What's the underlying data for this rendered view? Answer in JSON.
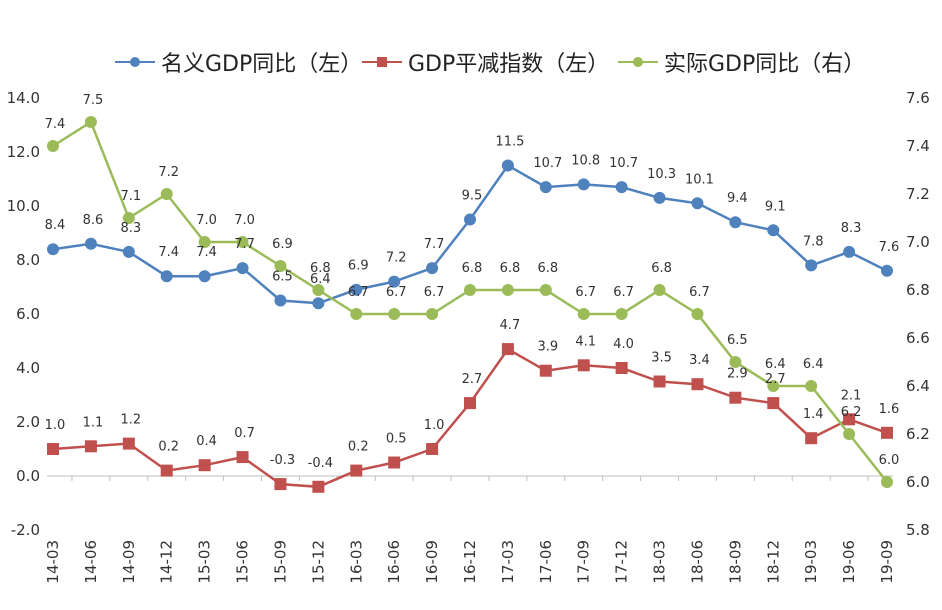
{
  "chart_data": {
    "type": "line",
    "categories": [
      "14-03",
      "14-06",
      "14-09",
      "14-12",
      "15-03",
      "15-06",
      "15-09",
      "15-12",
      "16-03",
      "16-06",
      "16-09",
      "16-12",
      "17-03",
      "17-06",
      "17-09",
      "17-12",
      "18-03",
      "18-06",
      "18-09",
      "18-12",
      "19-03",
      "19-06",
      "19-09"
    ],
    "left_axis": {
      "ylim": [
        -2.0,
        14.0
      ],
      "ticks": [
        "14.0",
        "12.0",
        "10.0",
        "8.0",
        "6.0",
        "4.0",
        "2.0",
        "0.0",
        "-2.0"
      ],
      "tick_values": [
        14,
        12,
        10,
        8,
        6,
        4,
        2,
        0,
        -2
      ]
    },
    "right_axis": {
      "ylim": [
        5.8,
        7.6
      ],
      "ticks": [
        "7.6",
        "7.4",
        "7.2",
        "7.0",
        "6.8",
        "6.6",
        "6.4",
        "6.2",
        "6.0",
        "5.8"
      ],
      "tick_values": [
        7.6,
        7.4,
        7.2,
        7.0,
        6.8,
        6.6,
        6.4,
        6.2,
        6.0,
        5.8
      ]
    },
    "series": [
      {
        "name": "名义GDP同比（左）",
        "axis": "left",
        "color": "#4f81bd",
        "marker": "circle",
        "values": [
          8.4,
          8.6,
          8.3,
          7.4,
          7.4,
          7.7,
          6.5,
          6.4,
          6.9,
          7.2,
          7.7,
          9.5,
          11.5,
          10.7,
          10.8,
          10.7,
          10.3,
          10.1,
          9.4,
          9.1,
          7.8,
          8.3,
          7.6
        ],
        "labels": [
          "8.4",
          "8.6",
          "8.3",
          "7.4",
          "7.4",
          "7.7",
          "6.5",
          "6.4",
          "6.9",
          "7.2",
          "7.7",
          "9.5",
          "11.5",
          "10.7",
          "10.8",
          "10.7",
          "10.3",
          "10.1",
          "9.4",
          "9.1",
          "7.8",
          "8.3",
          "7.6"
        ]
      },
      {
        "name": "GDP平减指数（左）",
        "axis": "left",
        "color": "#c0504d",
        "marker": "square",
        "values": [
          1.0,
          1.1,
          1.2,
          0.2,
          0.4,
          0.7,
          -0.3,
          -0.4,
          0.2,
          0.5,
          1.0,
          2.7,
          4.7,
          3.9,
          4.1,
          4.0,
          3.5,
          3.4,
          2.9,
          2.7,
          1.4,
          2.1,
          1.6
        ],
        "labels": [
          "1.0",
          "1.1",
          "1.2",
          "0.2",
          "0.4",
          "0.7",
          "-0.3",
          "-0.4",
          "0.2",
          "0.5",
          "1.0",
          "2.7",
          "4.7",
          "3.9",
          "4.1",
          "4.0",
          "3.5",
          "3.4",
          "2.9",
          "2.7",
          "1.4",
          "2.1",
          "1.6"
        ]
      },
      {
        "name": "实际GDP同比（右）",
        "axis": "right",
        "color": "#9bbb59",
        "marker": "circle",
        "values": [
          7.4,
          7.5,
          7.1,
          7.2,
          7.0,
          7.0,
          6.9,
          6.8,
          6.7,
          6.7,
          6.7,
          6.8,
          6.8,
          6.8,
          6.7,
          6.7,
          6.8,
          6.7,
          6.5,
          6.4,
          6.4,
          6.2,
          6.0
        ],
        "labels": [
          "7.4",
          "7.5",
          "7.1",
          "7.2",
          "7.0",
          "7.0",
          "6.9",
          "6.8",
          "6.7",
          "6.7",
          "6.7",
          "6.8",
          "6.8",
          "6.8",
          "6.7",
          "6.7",
          "6.8",
          "6.7",
          "6.5",
          "6.4",
          "6.4",
          "6.2",
          "6.0"
        ]
      }
    ],
    "legend": "top",
    "grid": false,
    "title": "",
    "xlabel": "",
    "ylabel": ""
  }
}
